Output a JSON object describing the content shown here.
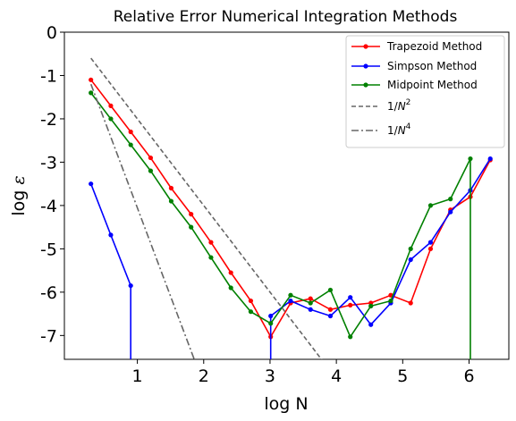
{
  "chart_data": {
    "type": "line",
    "title": "Relative Error Numerical Integration Methods",
    "xlabel": "log N",
    "ylabel_main": "log ",
    "ylabel_symbol": "ε",
    "xlim": [
      -0.1,
      6.6
    ],
    "ylim": [
      -7.55,
      0
    ],
    "xticks": [
      1,
      2,
      3,
      4,
      5,
      6
    ],
    "xtick_labels": [
      "1",
      "2",
      "3",
      "4",
      "5",
      "6"
    ],
    "yticks": [
      0,
      -1,
      -2,
      -3,
      -4,
      -5,
      -6,
      -7
    ],
    "ytick_labels": [
      "0",
      "-1",
      "-2",
      "-3",
      "-4",
      "-5",
      "-6",
      "-7"
    ],
    "grid": false,
    "legend_position": "top-right",
    "series": [
      {
        "name": "Trapezoid Method",
        "style": "solid-marker",
        "color": "#ff0000",
        "x": [
          0.3,
          0.6,
          0.9,
          1.2,
          1.51,
          1.81,
          2.11,
          2.41,
          2.71,
          3.01,
          3.31,
          3.61,
          3.91,
          4.21,
          4.52,
          4.82,
          5.12,
          5.42,
          5.72,
          6.02,
          6.32
        ],
        "y": [
          -1.1,
          -1.7,
          -2.3,
          -2.9,
          -3.6,
          -4.2,
          -4.85,
          -5.55,
          -6.2,
          -7.03,
          -6.25,
          -6.15,
          -6.4,
          -6.3,
          -6.25,
          -6.07,
          -6.25,
          -5.0,
          -4.1,
          -3.8,
          -2.95
        ]
      },
      {
        "name": "Simpson Method",
        "style": "solid-marker",
        "color": "#0000ff",
        "x": [
          0.3,
          0.6,
          0.9,
          1.2,
          1.51,
          1.81,
          2.11,
          2.41,
          2.71,
          3.01,
          3.31,
          3.61,
          3.91,
          4.21,
          4.52,
          4.82,
          5.12,
          5.42,
          5.72,
          6.02,
          6.32
        ],
        "y": [
          -3.5,
          -4.68,
          -5.85,
          null,
          null,
          null,
          null,
          null,
          null,
          -6.55,
          -6.2,
          -6.4,
          -6.55,
          -6.12,
          -6.75,
          -6.25,
          -5.25,
          -4.85,
          -4.15,
          -3.65,
          -2.92
        ]
      },
      {
        "name": "Midpoint Method",
        "style": "solid-marker",
        "color": "#008000",
        "x": [
          0.3,
          0.6,
          0.9,
          1.2,
          1.51,
          1.81,
          2.11,
          2.41,
          2.71,
          3.01,
          3.31,
          3.61,
          3.91,
          4.21,
          4.52,
          4.82,
          5.12,
          5.42,
          5.72,
          6.02,
          6.32
        ],
        "y": [
          -1.4,
          -2.0,
          -2.6,
          -3.2,
          -3.9,
          -4.5,
          -5.2,
          -5.9,
          -6.45,
          -6.72,
          -6.07,
          -6.25,
          -5.95,
          -7.03,
          -6.32,
          -6.2,
          -5.0,
          -4.0,
          -3.85,
          -2.92,
          null
        ]
      },
      {
        "name": "1/N^2",
        "legend_label_base": "1/",
        "legend_label_var": "N",
        "legend_label_exp": "2",
        "style": "dashed",
        "color": "#666666",
        "x": [
          0.3,
          3.8
        ],
        "y": [
          -0.6,
          -7.6
        ]
      },
      {
        "name": "1/N^4",
        "legend_label_base": "1/",
        "legend_label_var": "N",
        "legend_label_exp": "4",
        "style": "dashdot",
        "color": "#666666",
        "x": [
          0.3,
          1.87
        ],
        "y": [
          -1.2,
          -7.6
        ]
      }
    ]
  }
}
